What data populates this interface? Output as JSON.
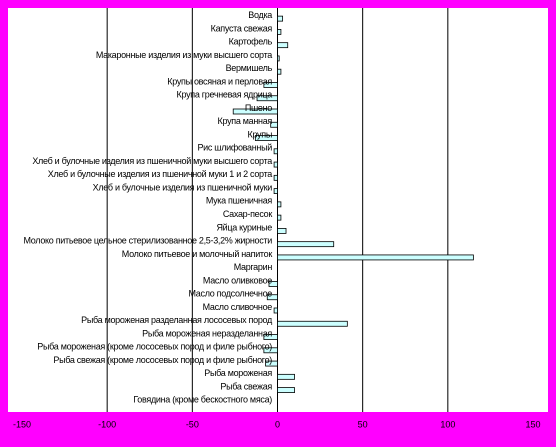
{
  "chart_data": {
    "type": "bar",
    "orientation": "horizontal",
    "categories": [
      "Водка",
      "Капуста свежая",
      "Картофель",
      "Макаронные изделия из муки высшего сорта",
      "Вермишель",
      "Крупы овсяная и перловая",
      "Крупа гречневая ядрица",
      "Пшено",
      "Крупа манная",
      "Крупы",
      "Рис шлифованный",
      "Хлеб и булочные изделия из пшеничной муки высшего сорта",
      "Хлеб и булочные изделия из пшеничной муки 1 и 2 сорта",
      "Хлеб и булочные изделия из пшеничной муки",
      "Мука пшеничная",
      "Сахар-песок",
      "Яйца куриные",
      "Молоко питьевое цельное стерилизованное 2,5-3,2% жирности",
      "Молоко питьевое и молочный напиток",
      "Маргарин",
      "Масло оливковое",
      "Масло подсолнечное",
      "Масло сливочное",
      "Рыба мороженая разделанная лососевых пород",
      "Рыба мороженая неразделанная",
      "Рыба мороженая (кроме лососевых пород и филе рыбного)",
      "Рыба свежая (кроме лососевых пород и филе рыбного)",
      "Рыба мороженая",
      "Рыба свежая",
      "Говядина (кроме бескостного мяса)"
    ],
    "values": [
      3,
      2,
      6,
      1,
      2,
      -8,
      -12,
      -26,
      -4,
      -13,
      -2,
      -2,
      -2,
      -2,
      2,
      2,
      5,
      33,
      115,
      0,
      -5,
      -6,
      -2,
      41,
      -8,
      -8,
      -7,
      10,
      10,
      0
    ],
    "color": "#ccffff",
    "xlim": [
      -150,
      150
    ],
    "xticks": [
      -150,
      -100,
      -50,
      0,
      50,
      100,
      150
    ],
    "grid": true
  }
}
